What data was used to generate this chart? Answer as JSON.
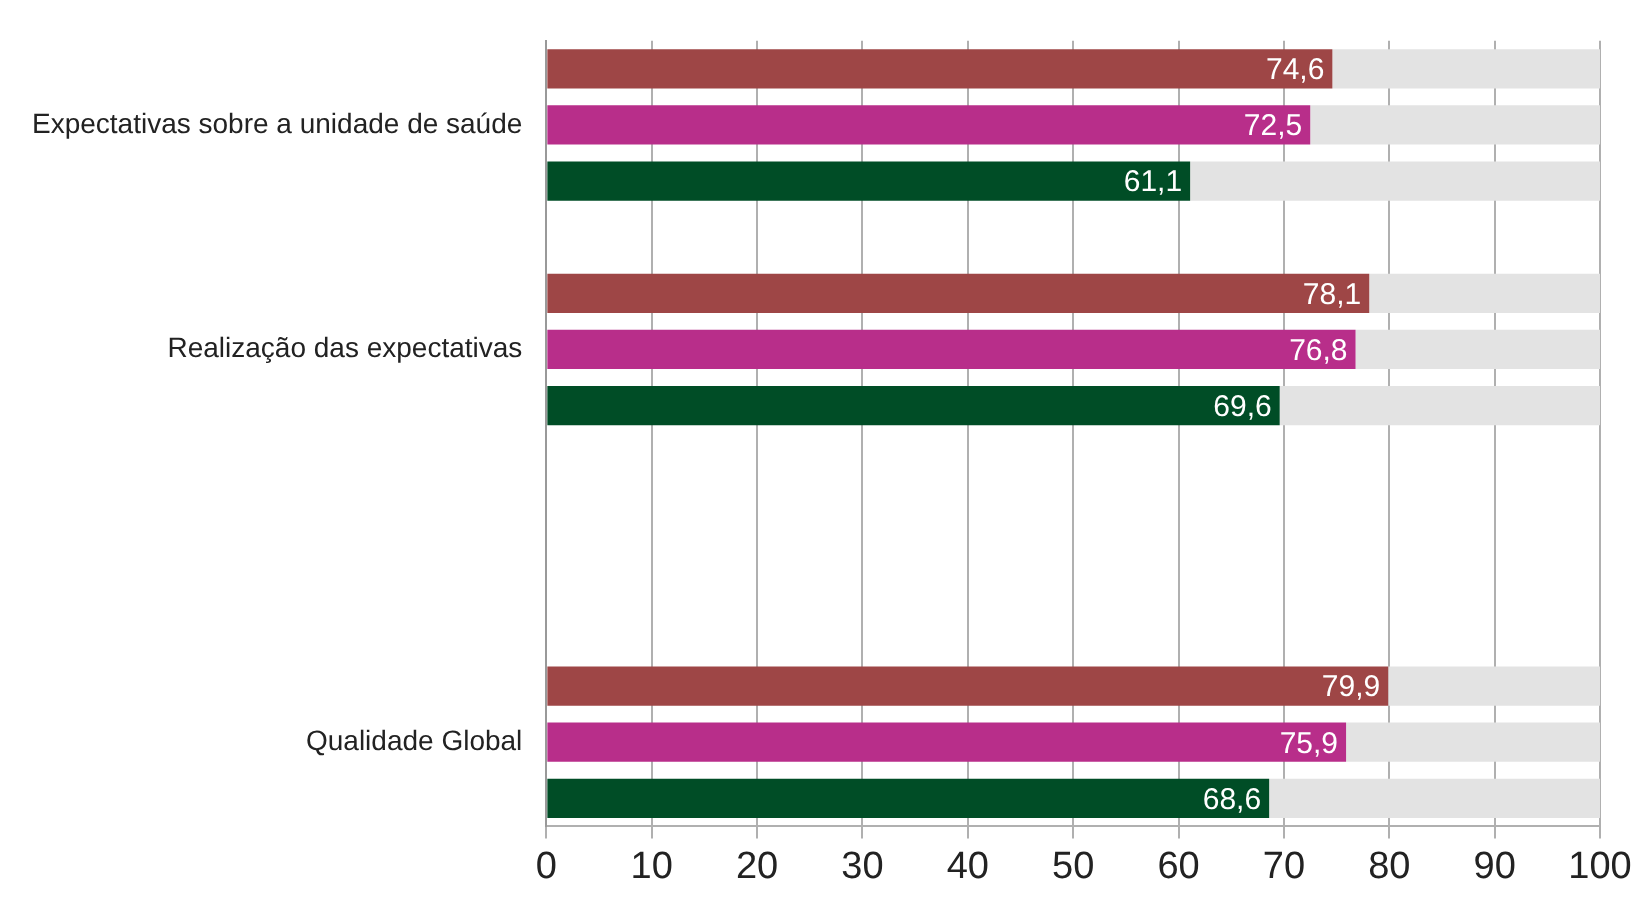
{
  "chart_data": {
    "type": "bar",
    "orientation": "horizontal",
    "stacked": true,
    "categories": [
      null,
      "Expectativas sobre a unidade de saúde",
      null,
      null,
      null,
      "Realização das expectativas",
      null,
      null,
      null,
      null,
      null,
      null,
      "Qualidade Global",
      null
    ],
    "series": [
      {
        "color": "#9e4646",
        "values": [
          74.6,
          null,
          null,
          null,
          78.1,
          null,
          null,
          null,
          null,
          null,
          null,
          79.9,
          null,
          null
        ],
        "value_labels": [
          "74,6",
          null,
          null,
          null,
          "78,1",
          null,
          null,
          null,
          null,
          null,
          null,
          "79,9",
          null,
          null
        ]
      },
      {
        "color": "#b82e8a",
        "values": [
          null,
          72.5,
          null,
          null,
          null,
          76.8,
          null,
          null,
          null,
          null,
          null,
          null,
          75.9,
          null
        ],
        "value_labels": [
          null,
          "72,5",
          null,
          null,
          null,
          "76,8",
          null,
          null,
          null,
          null,
          null,
          null,
          "75,9",
          null
        ]
      },
      {
        "color": "#004d26",
        "values": [
          null,
          null,
          61.1,
          null,
          null,
          null,
          69.6,
          null,
          null,
          null,
          null,
          null,
          null,
          68.6
        ],
        "value_labels": [
          null,
          null,
          "61,1",
          null,
          null,
          null,
          "69,6",
          null,
          null,
          null,
          null,
          null,
          null,
          "68,6"
        ]
      },
      {
        "color": "#e3e3e3",
        "values": [
          25.4,
          27.5,
          38.9,
          null,
          21.9,
          23.2,
          30.4,
          null,
          null,
          null,
          null,
          20.1,
          24.1,
          31.4
        ]
      }
    ],
    "xlim": [
      0,
      100
    ],
    "xticks": [
      0,
      10,
      20,
      30,
      40,
      50,
      60,
      70,
      80,
      90,
      100
    ],
    "grid": "x",
    "legend": false
  }
}
